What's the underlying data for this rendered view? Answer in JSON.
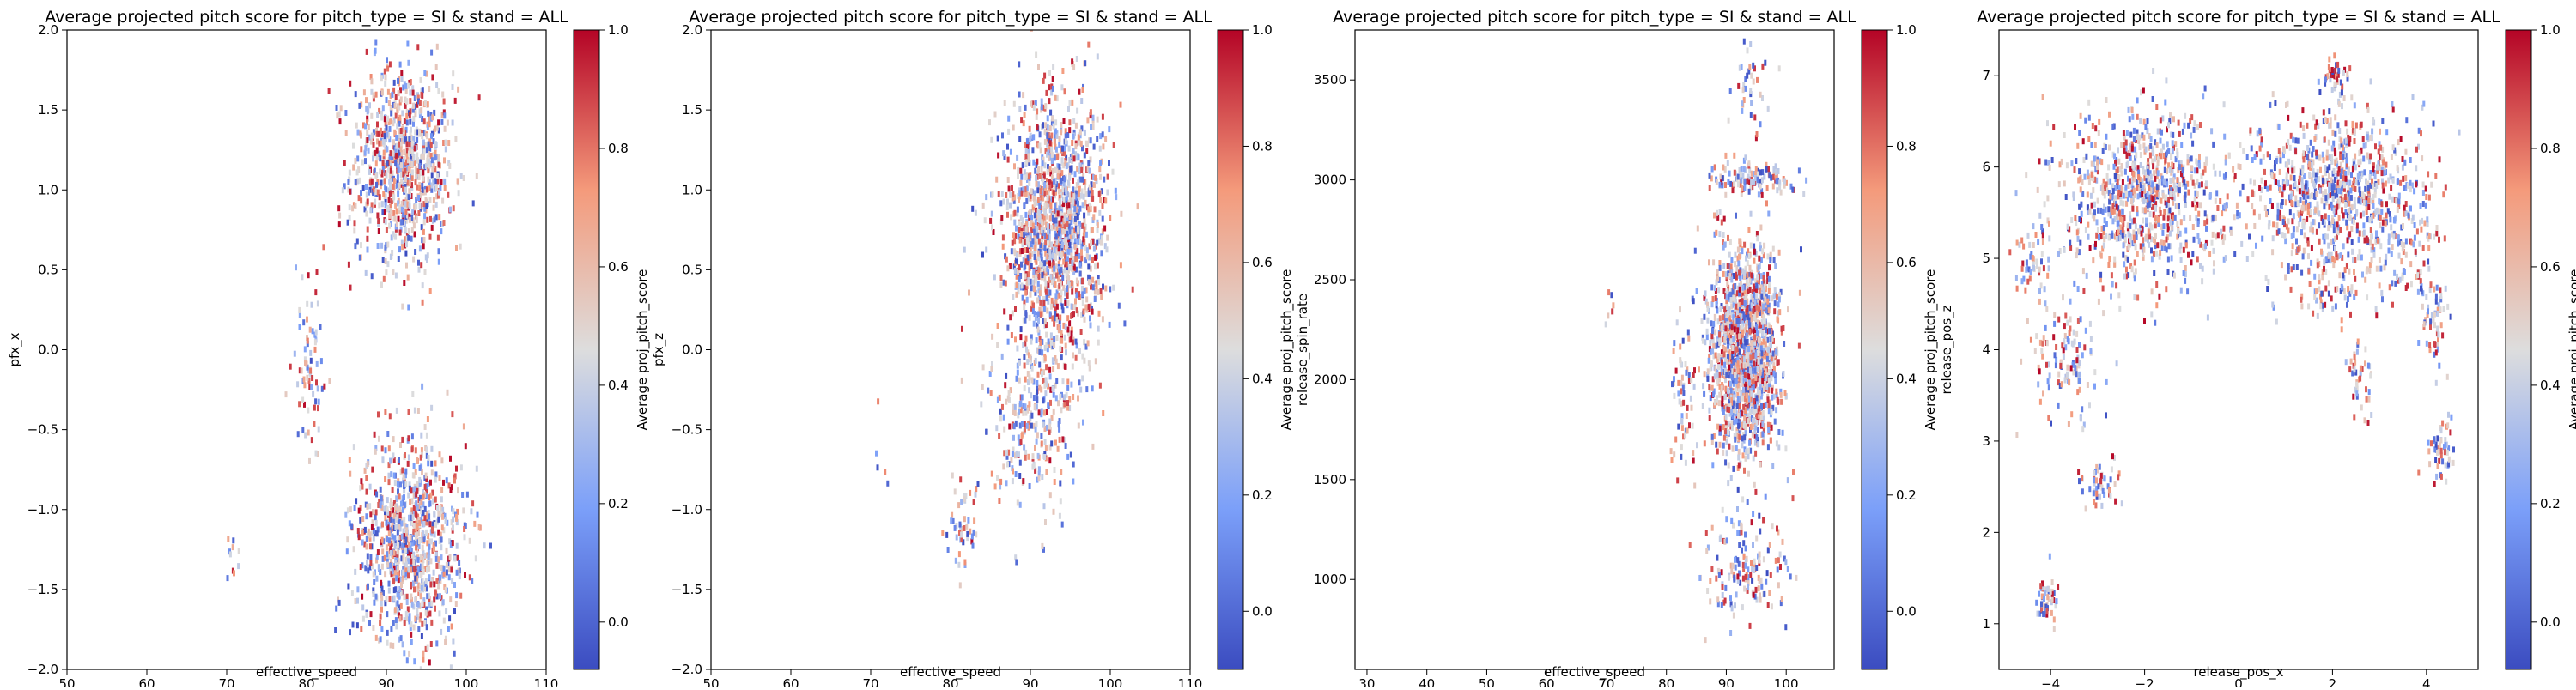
{
  "colormap": {
    "name": "coolwarm",
    "stops": [
      {
        "t": 0.0,
        "color": "#3b4cc0"
      },
      {
        "t": 0.25,
        "color": "#7b9ff9"
      },
      {
        "t": 0.5,
        "color": "#dddddd"
      },
      {
        "t": 0.75,
        "color": "#f49a7b"
      },
      {
        "t": 1.0,
        "color": "#b40426"
      }
    ]
  },
  "chart_data": [
    {
      "type": "heatmap",
      "title": "Average projected pitch score for pitch_type = SI & stand = ALL",
      "xlabel": "effective_speed",
      "ylabel": "pfx_x",
      "xlim": [
        50,
        110
      ],
      "ylim": [
        -2.0,
        2.0
      ],
      "xticks": [
        50,
        60,
        70,
        80,
        90,
        100,
        110
      ],
      "xtick_labels": [
        "50",
        "60",
        "70",
        "80",
        "90",
        "100",
        "110"
      ],
      "yticks": [
        -2.0,
        -1.5,
        -1.0,
        -0.5,
        0.0,
        0.5,
        1.0,
        1.5,
        2.0
      ],
      "ytick_labels": [
        "−2.0",
        "−1.5",
        "−1.0",
        "−0.5",
        "0.0",
        "0.5",
        "1.0",
        "1.5",
        "2.0"
      ],
      "colorbar": {
        "label": "Average proj_pitch_score",
        "vmin": -0.08,
        "vmax": 1.0,
        "ticks": [
          0.0,
          0.2,
          0.4,
          0.6,
          0.8,
          1.0
        ],
        "tick_labels": [
          "0.0",
          "0.2",
          "0.4",
          "0.6",
          "0.8",
          "1.0"
        ]
      },
      "clusters": [
        {
          "cx": 92,
          "cy": 1.15,
          "sx": 3.2,
          "sy": 0.32,
          "n": 900
        },
        {
          "cx": 93,
          "cy": -1.2,
          "sx": 3.5,
          "sy": 0.32,
          "n": 950
        },
        {
          "cx": 80.5,
          "cy": -0.15,
          "sx": 0.9,
          "sy": 0.28,
          "n": 80
        },
        {
          "cx": 70.5,
          "cy": -1.3,
          "sx": 0.8,
          "sy": 0.07,
          "n": 10
        }
      ]
    },
    {
      "type": "heatmap",
      "title": "Average projected pitch score for pitch_type = SI & stand = ALL",
      "xlabel": "effective_speed",
      "ylabel": "pfx_z",
      "xlim": [
        50,
        110
      ],
      "ylim": [
        -2.0,
        2.0
      ],
      "xticks": [
        50,
        60,
        70,
        80,
        90,
        100,
        110
      ],
      "xtick_labels": [
        "50",
        "60",
        "70",
        "80",
        "90",
        "100",
        "110"
      ],
      "yticks": [
        -2.0,
        -1.5,
        -1.0,
        -0.5,
        0.0,
        0.5,
        1.0,
        1.5,
        2.0
      ],
      "ytick_labels": [
        "−2.0",
        "−1.5",
        "−1.0",
        "−0.5",
        "0.0",
        "0.5",
        "1.0",
        "1.5",
        "2.0"
      ],
      "colorbar": {
        "label": "Average proj_pitch_score",
        "vmin": -0.1,
        "vmax": 1.0,
        "ticks": [
          0.0,
          0.2,
          0.4,
          0.6,
          0.8,
          1.0
        ],
        "tick_labels": [
          "0.0",
          "0.2",
          "0.4",
          "0.6",
          "0.8",
          "1.0"
        ]
      },
      "clusters": [
        {
          "cx": 93,
          "cy": 0.75,
          "sx": 3.2,
          "sy": 0.42,
          "n": 1500
        },
        {
          "cx": 90,
          "cy": -0.45,
          "sx": 2.5,
          "sy": 0.28,
          "n": 250
        },
        {
          "cx": 81.5,
          "cy": -1.1,
          "sx": 0.9,
          "sy": 0.15,
          "n": 50
        },
        {
          "cx": 71,
          "cy": -0.5,
          "sx": 1.0,
          "sy": 0.2,
          "n": 5
        }
      ]
    },
    {
      "type": "heatmap",
      "title": "Average projected pitch score for pitch_type = SI & stand = ALL",
      "xlabel": "effective_speed",
      "ylabel": "release_spin_rate",
      "xlim": [
        28,
        108
      ],
      "ylim": [
        550,
        3750
      ],
      "xticks": [
        30,
        40,
        50,
        60,
        70,
        80,
        90,
        100
      ],
      "xtick_labels": [
        "30",
        "40",
        "50",
        "60",
        "70",
        "80",
        "90",
        "100"
      ],
      "yticks": [
        1000,
        1500,
        2000,
        2500,
        3000,
        3500
      ],
      "ytick_labels": [
        "1000",
        "1500",
        "2000",
        "2500",
        "3000",
        "3500"
      ],
      "colorbar": {
        "label": "Average proj_pitch_score",
        "vmin": -0.1,
        "vmax": 1.0,
        "ticks": [
          0.0,
          0.2,
          0.4,
          0.6,
          0.8,
          1.0
        ],
        "tick_labels": [
          "0.0",
          "0.2",
          "0.4",
          "0.6",
          "0.8",
          "1.0"
        ]
      },
      "clusters": [
        {
          "cx": 93,
          "cy": 2150,
          "sx": 3.0,
          "sy": 260,
          "n": 1500
        },
        {
          "cx": 94,
          "cy": 3000,
          "sx": 3.5,
          "sy": 40,
          "n": 120
        },
        {
          "cx": 93,
          "cy": 1050,
          "sx": 3.5,
          "sy": 130,
          "n": 150
        },
        {
          "cx": 94,
          "cy": 3450,
          "sx": 2.0,
          "sy": 120,
          "n": 40
        },
        {
          "cx": 83,
          "cy": 1900,
          "sx": 1.2,
          "sy": 200,
          "n": 60
        },
        {
          "cx": 71,
          "cy": 2380,
          "sx": 0.6,
          "sy": 60,
          "n": 6
        }
      ]
    },
    {
      "type": "heatmap",
      "title": "Average projected pitch score for pitch_type = SI & stand = ALL",
      "xlabel": "release_pos_x",
      "ylabel": "release_pos_z",
      "xlim": [
        -5.1,
        5.1
      ],
      "ylim": [
        0.5,
        7.5
      ],
      "xticks": [
        -4,
        -2,
        0,
        2,
        4
      ],
      "xtick_labels": [
        "−4",
        "−2",
        "0",
        "2",
        "4"
      ],
      "yticks": [
        1,
        2,
        3,
        4,
        5,
        6,
        7
      ],
      "ytick_labels": [
        "1",
        "2",
        "3",
        "4",
        "5",
        "6",
        "7"
      ],
      "colorbar": {
        "label": "Average proj_pitch_score",
        "vmin": -0.08,
        "vmax": 1.0,
        "ticks": [
          0.0,
          0.2,
          0.4,
          0.6,
          0.8,
          1.0
        ],
        "tick_labels": [
          "0.0",
          "0.2",
          "0.4",
          "0.6",
          "0.8",
          "1.0"
        ]
      },
      "clusters": [
        {
          "cx": -2.0,
          "cy": 5.7,
          "sx": 0.9,
          "sy": 0.45,
          "n": 900
        },
        {
          "cx": 2.0,
          "cy": 5.8,
          "sx": 0.9,
          "sy": 0.4,
          "n": 800
        },
        {
          "cx": -3.7,
          "cy": 3.9,
          "sx": 0.4,
          "sy": 0.3,
          "n": 120
        },
        {
          "cx": -4.4,
          "cy": 4.9,
          "sx": 0.2,
          "sy": 0.3,
          "n": 50
        },
        {
          "cx": 1.9,
          "cy": 4.8,
          "sx": 0.6,
          "sy": 0.25,
          "n": 120
        },
        {
          "cx": 3.6,
          "cy": 5.2,
          "sx": 0.4,
          "sy": 0.35,
          "n": 120
        },
        {
          "cx": 2.1,
          "cy": 7.0,
          "sx": 0.15,
          "sy": 0.1,
          "n": 40
        },
        {
          "cx": 2.6,
          "cy": 3.7,
          "sx": 0.15,
          "sy": 0.2,
          "n": 40
        },
        {
          "cx": 4.2,
          "cy": 4.3,
          "sx": 0.15,
          "sy": 0.25,
          "n": 50
        },
        {
          "cx": 4.3,
          "cy": 2.9,
          "sx": 0.15,
          "sy": 0.15,
          "n": 50
        },
        {
          "cx": -2.9,
          "cy": 2.5,
          "sx": 0.2,
          "sy": 0.15,
          "n": 50
        },
        {
          "cx": -4.1,
          "cy": 1.25,
          "sx": 0.12,
          "sy": 0.15,
          "n": 50
        }
      ]
    }
  ]
}
